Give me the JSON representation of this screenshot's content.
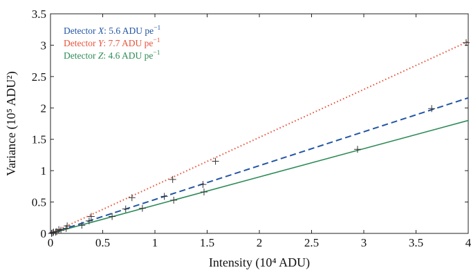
{
  "chart_data": {
    "type": "scatter",
    "xlabel": "Intensity (10⁴ ADU)",
    "ylabel": "Variance (10⁵ ADU²)",
    "xlim": [
      0,
      4
    ],
    "ylim": [
      0,
      3.5
    ],
    "xticks": [
      "0",
      "0.5",
      "1",
      "1.5",
      "2",
      "2.5",
      "3",
      "3.5",
      "4"
    ],
    "yticks": [
      "0",
      "0.5",
      "1",
      "1.5",
      "2",
      "2.5",
      "3",
      "3.5"
    ],
    "grid": false,
    "legend_position": "top-left",
    "series": [
      {
        "name": "Detector X: 5.6 ADU pe⁻¹",
        "label_prefix": "Detector ",
        "label_var": "X",
        "label_rest": ": 5.6 ADU pe",
        "label_sup": "−1",
        "color": "#2255a4",
        "line_style": "dashed",
        "slope": 0.54,
        "points": [
          [
            0.02,
            0.01
          ],
          [
            0.06,
            0.03
          ],
          [
            0.15,
            0.08
          ],
          [
            0.37,
            0.2
          ],
          [
            0.72,
            0.39
          ],
          [
            1.09,
            0.59
          ],
          [
            1.46,
            0.78
          ],
          [
            3.65,
            1.99
          ]
        ]
      },
      {
        "name": "Detector Y: 7.7 ADU pe⁻¹",
        "label_prefix": "Detector ",
        "label_var": "Y",
        "label_rest": ": 7.7 ADU pe",
        "label_sup": "−1",
        "color": "#e8533b",
        "line_style": "dotted",
        "slope": 0.765,
        "points": [
          [
            0.03,
            0.02
          ],
          [
            0.08,
            0.06
          ],
          [
            0.16,
            0.12
          ],
          [
            0.39,
            0.27
          ],
          [
            0.78,
            0.57
          ],
          [
            1.17,
            0.86
          ],
          [
            1.58,
            1.15
          ],
          [
            3.98,
            3.04
          ]
        ]
      },
      {
        "name": "Detector Z: 4.6 ADU pe⁻¹",
        "label_prefix": "Detector ",
        "label_var": "Z",
        "label_rest": ": 4.6 ADU pe",
        "label_sup": "−1",
        "color": "#2e8b57",
        "line_style": "solid",
        "slope": 0.45,
        "points": [
          [
            0.01,
            0.0
          ],
          [
            0.05,
            0.02
          ],
          [
            0.1,
            0.05
          ],
          [
            0.3,
            0.13
          ],
          [
            0.59,
            0.27
          ],
          [
            0.88,
            0.4
          ],
          [
            1.18,
            0.53
          ],
          [
            1.47,
            0.66
          ],
          [
            2.94,
            1.34
          ]
        ]
      }
    ]
  }
}
